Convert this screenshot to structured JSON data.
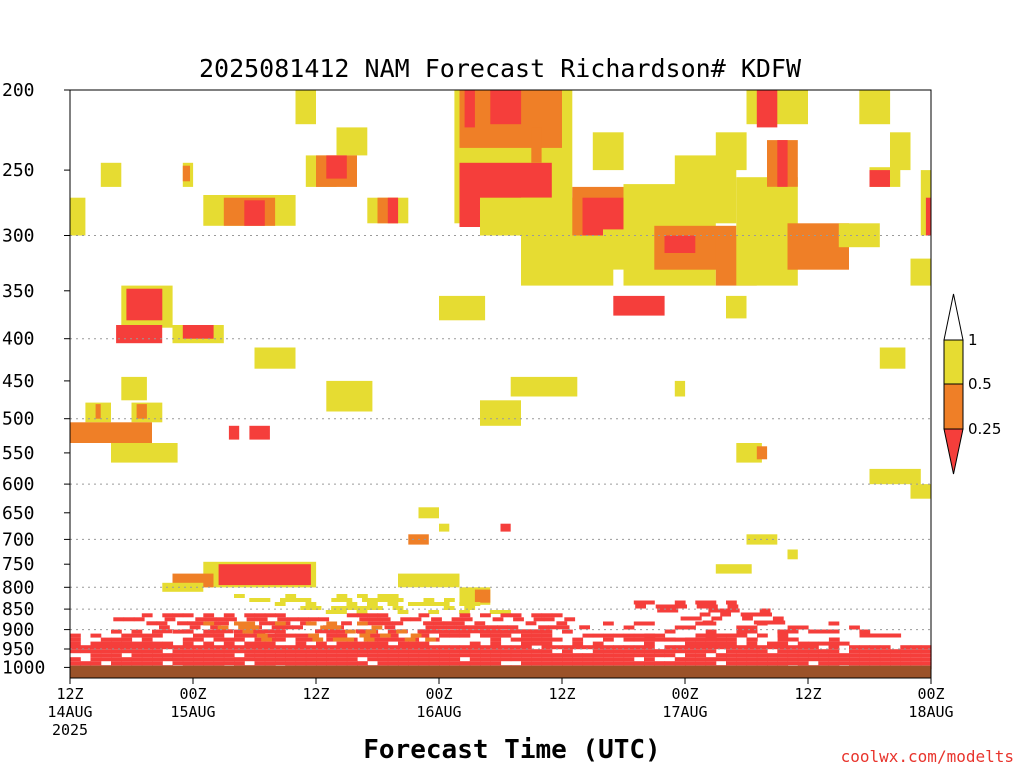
{
  "chart_data": {
    "type": "heatmap",
    "title": "2025081412 NAM Forecast Richardson# KDFW",
    "xlabel": "Forecast Time (UTC)",
    "ylabel": "",
    "credit": "coolwx.com/modelts",
    "x_ticks": [
      {
        "hour": 0,
        "l1": "12Z",
        "l2": "14AUG",
        "l3": "2025"
      },
      {
        "hour": 12,
        "l1": "00Z",
        "l2": "15AUG",
        "l3": ""
      },
      {
        "hour": 24,
        "l1": "12Z",
        "l2": "",
        "l3": ""
      },
      {
        "hour": 36,
        "l1": "00Z",
        "l2": "16AUG",
        "l3": ""
      },
      {
        "hour": 48,
        "l1": "12Z",
        "l2": "",
        "l3": ""
      },
      {
        "hour": 60,
        "l1": "00Z",
        "l2": "17AUG",
        "l3": ""
      },
      {
        "hour": 72,
        "l1": "12Z",
        "l2": "",
        "l3": ""
      },
      {
        "hour": 84,
        "l1": "00Z",
        "l2": "18AUG",
        "l3": ""
      }
    ],
    "x_range_hours": [
      0,
      84
    ],
    "y_ticks": [
      "200",
      "250",
      "300",
      "350",
      "400",
      "450",
      "500",
      "550",
      "600",
      "650",
      "700",
      "750",
      "800",
      "850",
      "900",
      "950",
      "1000"
    ],
    "y_range_mb": [
      200,
      1030
    ],
    "y_scale": "log-pressure",
    "grid": "dotted horizontal at 300, 400, 500, 600, 700, 800, 850, 900, 950 mb",
    "colorbar": {
      "labels": [
        "1",
        "0.5",
        "0.25"
      ],
      "bins": [
        {
          "range": "0.5-1",
          "color": "#e6dc32"
        },
        {
          "range": "0.25-0.5",
          "color": "#ef7f27"
        },
        {
          "range": "<0.25",
          "color": "#f53e3b"
        }
      ]
    },
    "colors": {
      "high": "#e6dc32",
      "mid": "#ef7f27",
      "low": "#f53e3b",
      "ground": "#9b5229"
    },
    "ground_level_mb": 995,
    "cells": [
      {
        "h": [
          22,
          24
        ],
        "p": [
          200,
          220
        ],
        "c": "high"
      },
      {
        "h": [
          26,
          29
        ],
        "p": [
          222,
          240
        ],
        "c": "high"
      },
      {
        "h": [
          23,
          26
        ],
        "p": [
          240,
          262
        ],
        "c": "high"
      },
      {
        "h": [
          24,
          28
        ],
        "p": [
          240,
          262
        ],
        "c": "mid"
      },
      {
        "h": [
          25,
          27
        ],
        "p": [
          240,
          256
        ],
        "c": "low"
      },
      {
        "h": [
          3,
          5
        ],
        "p": [
          245,
          262
        ],
        "c": "high"
      },
      {
        "h": [
          11,
          12
        ],
        "p": [
          245,
          262
        ],
        "c": "high"
      },
      {
        "h": [
          11,
          11.7
        ],
        "p": [
          247,
          258
        ],
        "c": "mid"
      },
      {
        "h": [
          0,
          1.5
        ],
        "p": [
          270,
          300
        ],
        "c": "high"
      },
      {
        "h": [
          13,
          22
        ],
        "p": [
          268,
          292
        ],
        "c": "high"
      },
      {
        "h": [
          15,
          20
        ],
        "p": [
          270,
          292
        ],
        "c": "mid"
      },
      {
        "h": [
          17,
          19
        ],
        "p": [
          272,
          292
        ],
        "c": "low"
      },
      {
        "h": [
          29,
          33
        ],
        "p": [
          270,
          290
        ],
        "c": "high"
      },
      {
        "h": [
          30,
          32
        ],
        "p": [
          270,
          290
        ],
        "c": "mid"
      },
      {
        "h": [
          31,
          32
        ],
        "p": [
          270,
          290
        ],
        "c": "low"
      },
      {
        "h": [
          37.5,
          49
        ],
        "p": [
          200,
          290
        ],
        "c": "high"
      },
      {
        "h": [
          38,
          48
        ],
        "p": [
          200,
          235
        ],
        "c": "mid"
      },
      {
        "h": [
          41,
          44
        ],
        "p": [
          200,
          220
        ],
        "c": "low"
      },
      {
        "h": [
          38.5,
          39.5
        ],
        "p": [
          200,
          222
        ],
        "c": "low"
      },
      {
        "h": [
          38,
          47
        ],
        "p": [
          245,
          293
        ],
        "c": "low"
      },
      {
        "h": [
          45,
          46
        ],
        "p": [
          222,
          245
        ],
        "c": "mid"
      },
      {
        "h": [
          40,
          49
        ],
        "p": [
          270,
          300
        ],
        "c": "high"
      },
      {
        "h": [
          44,
          53
        ],
        "p": [
          270,
          345
        ],
        "c": "high"
      },
      {
        "h": [
          49,
          57
        ],
        "p": [
          262,
          300
        ],
        "c": "mid"
      },
      {
        "h": [
          50,
          55
        ],
        "p": [
          270,
          300
        ],
        "c": "low"
      },
      {
        "h": [
          51,
          54
        ],
        "p": [
          225,
          250
        ],
        "c": "high"
      },
      {
        "h": [
          52,
          58
        ],
        "p": [
          295,
          330
        ],
        "c": "high"
      },
      {
        "h": [
          54,
          63
        ],
        "p": [
          260,
          345
        ],
        "c": "high"
      },
      {
        "h": [
          57,
          65
        ],
        "p": [
          292,
          330
        ],
        "c": "mid"
      },
      {
        "h": [
          58,
          61
        ],
        "p": [
          300,
          315
        ],
        "c": "low"
      },
      {
        "h": [
          59,
          65
        ],
        "p": [
          240,
          290
        ],
        "c": "high"
      },
      {
        "h": [
          63,
          67
        ],
        "p": [
          300,
          345
        ],
        "c": "mid"
      },
      {
        "h": [
          65,
          71
        ],
        "p": [
          255,
          345
        ],
        "c": "high"
      },
      {
        "h": [
          63,
          66
        ],
        "p": [
          225,
          250
        ],
        "c": "high"
      },
      {
        "h": [
          66,
          72
        ],
        "p": [
          200,
          220
        ],
        "c": "high"
      },
      {
        "h": [
          67,
          69
        ],
        "p": [
          200,
          222
        ],
        "c": "low"
      },
      {
        "h": [
          68,
          71
        ],
        "p": [
          230,
          262
        ],
        "c": "mid"
      },
      {
        "h": [
          69,
          70
        ],
        "p": [
          230,
          262
        ],
        "c": "low"
      },
      {
        "h": [
          70,
          76
        ],
        "p": [
          290,
          330
        ],
        "c": "mid"
      },
      {
        "h": [
          75,
          79
        ],
        "p": [
          290,
          310
        ],
        "c": "high"
      },
      {
        "h": [
          77,
          80
        ],
        "p": [
          200,
          220
        ],
        "c": "high"
      },
      {
        "h": [
          78,
          81
        ],
        "p": [
          248,
          262
        ],
        "c": "high"
      },
      {
        "h": [
          78,
          80
        ],
        "p": [
          250,
          262
        ],
        "c": "low"
      },
      {
        "h": [
          80,
          82
        ],
        "p": [
          225,
          250
        ],
        "c": "high"
      },
      {
        "h": [
          83,
          84
        ],
        "p": [
          250,
          300
        ],
        "c": "high"
      },
      {
        "h": [
          83.5,
          84
        ],
        "p": [
          270,
          300
        ],
        "c": "low"
      },
      {
        "h": [
          82,
          84
        ],
        "p": [
          320,
          345
        ],
        "c": "high"
      },
      {
        "h": [
          5,
          10
        ],
        "p": [
          345,
          388
        ],
        "c": "high"
      },
      {
        "h": [
          5.5,
          9
        ],
        "p": [
          348,
          380
        ],
        "c": "low"
      },
      {
        "h": [
          4.5,
          9
        ],
        "p": [
          385,
          405
        ],
        "c": "low"
      },
      {
        "h": [
          10,
          15
        ],
        "p": [
          385,
          405
        ],
        "c": "high"
      },
      {
        "h": [
          11,
          14
        ],
        "p": [
          385,
          400
        ],
        "c": "low"
      },
      {
        "h": [
          36,
          40.5
        ],
        "p": [
          355,
          380
        ],
        "c": "high"
      },
      {
        "h": [
          53,
          58
        ],
        "p": [
          355,
          375
        ],
        "c": "low"
      },
      {
        "h": [
          64,
          66
        ],
        "p": [
          355,
          378
        ],
        "c": "high"
      },
      {
        "h": [
          18,
          22
        ],
        "p": [
          410,
          435
        ],
        "c": "high"
      },
      {
        "h": [
          79,
          81.5
        ],
        "p": [
          410,
          435
        ],
        "c": "high"
      },
      {
        "h": [
          5,
          7.5
        ],
        "p": [
          445,
          475
        ],
        "c": "high"
      },
      {
        "h": [
          25,
          29.5
        ],
        "p": [
          450,
          490
        ],
        "c": "high"
      },
      {
        "h": [
          43,
          49.5
        ],
        "p": [
          445,
          470
        ],
        "c": "high"
      },
      {
        "h": [
          59,
          60
        ],
        "p": [
          450,
          470
        ],
        "c": "high"
      },
      {
        "h": [
          40,
          44
        ],
        "p": [
          475,
          510
        ],
        "c": "high"
      },
      {
        "h": [
          1.5,
          4
        ],
        "p": [
          478,
          505
        ],
        "c": "high"
      },
      {
        "h": [
          2.5,
          3
        ],
        "p": [
          480,
          500
        ],
        "c": "mid"
      },
      {
        "h": [
          6,
          9
        ],
        "p": [
          478,
          505
        ],
        "c": "high"
      },
      {
        "h": [
          6.5,
          7.5
        ],
        "p": [
          480,
          500
        ],
        "c": "mid"
      },
      {
        "h": [
          0,
          8
        ],
        "p": [
          505,
          535
        ],
        "c": "mid"
      },
      {
        "h": [
          4,
          10.5
        ],
        "p": [
          535,
          565
        ],
        "c": "high"
      },
      {
        "h": [
          15.5,
          16.5
        ],
        "p": [
          510,
          530
        ],
        "c": "low"
      },
      {
        "h": [
          17.5,
          19.5
        ],
        "p": [
          510,
          530
        ],
        "c": "low"
      },
      {
        "h": [
          65,
          67.5
        ],
        "p": [
          535,
          565
        ],
        "c": "high"
      },
      {
        "h": [
          67,
          68
        ],
        "p": [
          540,
          560
        ],
        "c": "mid"
      },
      {
        "h": [
          78,
          83
        ],
        "p": [
          575,
          600
        ],
        "c": "high"
      },
      {
        "h": [
          82,
          84
        ],
        "p": [
          600,
          625
        ],
        "c": "high"
      },
      {
        "h": [
          34,
          36
        ],
        "p": [
          640,
          660
        ],
        "c": "high"
      },
      {
        "h": [
          36,
          37
        ],
        "p": [
          670,
          685
        ],
        "c": "high"
      },
      {
        "h": [
          42,
          43
        ],
        "p": [
          670,
          685
        ],
        "c": "low"
      },
      {
        "h": [
          33,
          35
        ],
        "p": [
          690,
          710
        ],
        "c": "mid"
      },
      {
        "h": [
          66,
          69
        ],
        "p": [
          690,
          710
        ],
        "c": "high"
      },
      {
        "h": [
          70,
          71
        ],
        "p": [
          720,
          740
        ],
        "c": "high"
      },
      {
        "h": [
          63,
          66.5
        ],
        "p": [
          750,
          770
        ],
        "c": "high"
      },
      {
        "h": [
          13,
          24
        ],
        "p": [
          745,
          800
        ],
        "c": "high"
      },
      {
        "h": [
          14.5,
          23.5
        ],
        "p": [
          750,
          795
        ],
        "c": "low"
      },
      {
        "h": [
          10,
          14
        ],
        "p": [
          770,
          800
        ],
        "c": "mid"
      },
      {
        "h": [
          32,
          38
        ],
        "p": [
          770,
          800
        ],
        "c": "high"
      },
      {
        "h": [
          9,
          13
        ],
        "p": [
          790,
          810
        ],
        "c": "high"
      },
      {
        "h": [
          38,
          41
        ],
        "p": [
          800,
          840
        ],
        "c": "high"
      },
      {
        "h": [
          39.5,
          41
        ],
        "p": [
          805,
          835
        ],
        "c": "mid"
      }
    ],
    "bands": [
      {
        "p": [
          815,
          860
        ],
        "l": [
          15,
          27
        ],
        "r": [
          35,
          45
        ],
        "c": "high",
        "d": 0.5
      },
      {
        "p": [
          860,
          900
        ],
        "l": [
          3,
          8
        ],
        "r": [
          48,
          52
        ],
        "c": "low",
        "d": 0.55
      },
      {
        "p": [
          900,
          940
        ],
        "l": [
          0,
          0
        ],
        "r": [
          49,
          84
        ],
        "c": "low",
        "d": 0.6
      },
      {
        "p": [
          880,
          930
        ],
        "l": [
          52,
          57
        ],
        "r": [
          75,
          84
        ],
        "c": "low",
        "d": 0.45
      },
      {
        "p": [
          830,
          880
        ],
        "l": [
          54,
          60
        ],
        "r": [
          66,
          70
        ],
        "c": "low",
        "d": 0.45
      },
      {
        "p": [
          940,
          995
        ],
        "l": [
          0,
          0
        ],
        "r": [
          84,
          84
        ],
        "c": "low",
        "d": 0.92
      },
      {
        "p": [
          880,
          930
        ],
        "l": [
          13,
          20
        ],
        "r": [
          30,
          36
        ],
        "c": "mid",
        "d": 0.3
      }
    ]
  }
}
